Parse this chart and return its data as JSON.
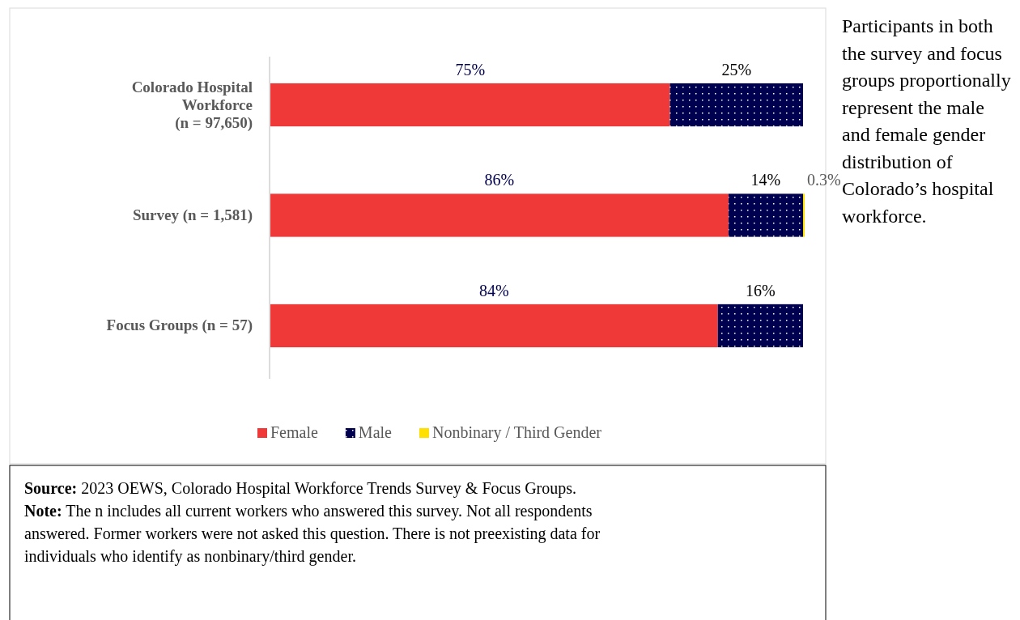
{
  "chart_data": {
    "type": "bar",
    "orientation": "horizontal",
    "stacked": true,
    "categories": [
      "Colorado Hospital Workforce (n = 97,650)",
      "Survey (n = 1,581)",
      "Focus Groups (n = 57)"
    ],
    "series": [
      {
        "name": "Female",
        "color": "#ef3838",
        "values": [
          75,
          86,
          84
        ],
        "value_labels": [
          "75%",
          "86%",
          "84%"
        ]
      },
      {
        "name": "Male",
        "color": "#000050",
        "values": [
          25,
          14,
          16
        ],
        "value_labels": [
          "25%",
          "14%",
          "16%"
        ]
      },
      {
        "name": "Nonbinary / Third Gender",
        "color": "#ffe000",
        "values": [
          null,
          0.3,
          null
        ],
        "value_labels": [
          null,
          "0.3%",
          null
        ]
      }
    ],
    "legend": "bottom",
    "annotations": [
      "Participants in both the survey and focus groups proportionally represent the male and female gender distribution of Colorado’s hospital workforce.",
      "Source: 2023 OEWS, Colorado Hospital Workforce Trends Survey & Focus Groups.",
      "Note: The n includes all current workers who answered this survey. Not all respondents answered. Former workers were not asked this question. There is not preexisting data for individuals who identify as nonbinary/third gender."
    ]
  }
}
